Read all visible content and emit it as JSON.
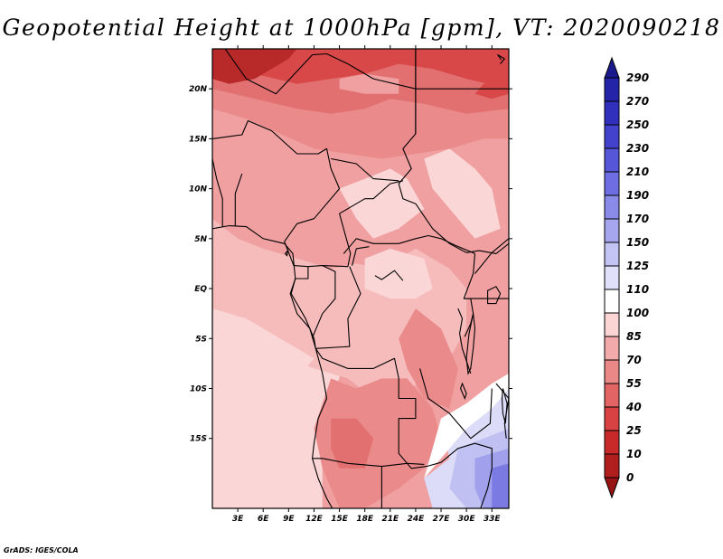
{
  "title": "Geopotential Height at 1000hPa [gpm], VT: 2020090218",
  "footer": "GrADS: IGES/COLA",
  "map": {
    "lon_range": [
      0,
      35
    ],
    "lat_range": [
      -22,
      24
    ],
    "lon_ticks": [
      "3E",
      "6E",
      "9E",
      "12E",
      "15E",
      "18E",
      "21E",
      "24E",
      "27E",
      "30E",
      "33E"
    ],
    "lat_ticks": [
      "20N",
      "15N",
      "10N",
      "5N",
      "EQ",
      "5S",
      "10S",
      "15S"
    ]
  },
  "colorbar": {
    "levels": [
      "290",
      "270",
      "250",
      "230",
      "210",
      "190",
      "170",
      "150",
      "125",
      "110",
      "100",
      "85",
      "70",
      "55",
      "40",
      "25",
      "10",
      "0"
    ],
    "colors": [
      "#1a1a8c",
      "#2424a8",
      "#3030bc",
      "#4242cc",
      "#5656d8",
      "#6e6ee2",
      "#8a8ae8",
      "#a6a6ee",
      "#c4c4f4",
      "#e0e0fa",
      "#ffffff",
      "#fbd4d4",
      "#f3aaaa",
      "#ea8888",
      "#e26464",
      "#d94242",
      "#c82a2a",
      "#b01e1e",
      "#961414"
    ],
    "contour_colors": {
      "deep_red": "#b82a2a",
      "red": "#d94848",
      "mid_red": "#e27070",
      "salmon": "#ea8a8a",
      "light_salmon": "#f0a0a0",
      "pink": "#f6bcbc",
      "pale_pink": "#fbd6d6",
      "near_white": "#fdeaea",
      "white": "#ffffff",
      "pale_blue": "#dcdcf8",
      "light_blue": "#c0c0f2",
      "lavender": "#a0a0ec",
      "blue": "#7a7ae2"
    }
  }
}
